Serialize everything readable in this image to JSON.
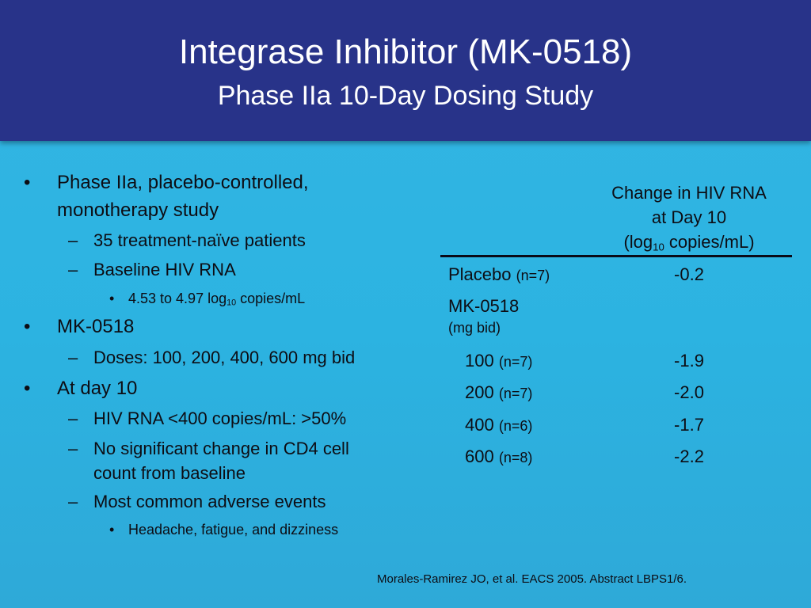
{
  "title": "Integrase Inhibitor (MK-0518)",
  "subtitle": "Phase IIa 10-Day Dosing Study",
  "bullets": {
    "b1": "Phase IIa, placebo-controlled,",
    "b1_cont": "monotherapy study",
    "b1_s1": "35 treatment-naïve patients",
    "b1_s2": "Baseline HIV RNA",
    "b1_s2_a_pre": "4.53 to 4.97 log",
    "b1_s2_a_sub": "10",
    "b1_s2_a_post": " copies/mL",
    "b2": "MK-0518",
    "b2_s1": "Doses: 100, 200, 400, 600 mg bid",
    "b3": "At day 10",
    "b3_s1": "HIV RNA <400 copies/mL: >50%",
    "b3_s2": "No significant change in CD4 cell",
    "b3_s2_cont": "count from baseline",
    "b3_s3": "Most common adverse events",
    "b3_s3_a": "Headache, fatigue, and dizziness",
    "bullet_char": "•",
    "dash_char": "–"
  },
  "table": {
    "header_line1": "Change in HIV RNA",
    "header_line2": "at Day 10",
    "header_line3_pre": "(log",
    "header_line3_sub": "10",
    "header_line3_post": " copies/mL)",
    "placebo_label": "Placebo",
    "placebo_n": "(n=7)",
    "placebo_value": "-0.2",
    "drug_label": "MK-0518",
    "drug_unit": "(mg bid)",
    "rows": [
      {
        "dose": "100",
        "n": "(n=7)",
        "value": "-1.9"
      },
      {
        "dose": "200",
        "n": "(n=7)",
        "value": "-2.0"
      },
      {
        "dose": "400",
        "n": "(n=6)",
        "value": "-1.7"
      },
      {
        "dose": "600",
        "n": "(n=8)",
        "value": "-2.2"
      }
    ]
  },
  "footer": "Morales-Ramirez JO, et al. EACS 2005. Abstract LBPS1/6.",
  "colors": {
    "header_bg": "#283389",
    "body_bg": "#33b6e4",
    "text": "#0d0d14",
    "title_text": "#ffffff"
  }
}
